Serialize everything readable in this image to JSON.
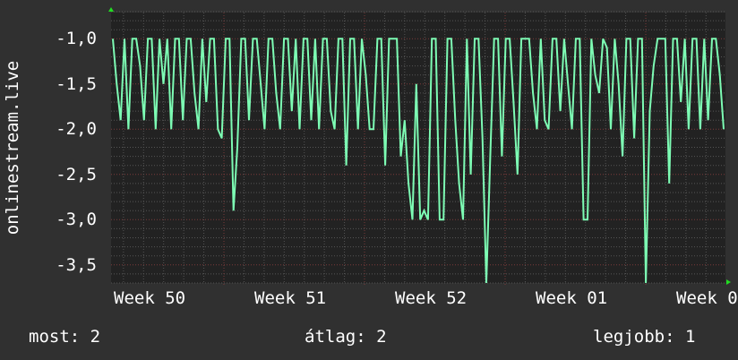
{
  "chart_data": {
    "type": "line",
    "ylabel": "onlinestream.live",
    "xlabel": "",
    "ylim": [
      -3.7,
      -0.71
    ],
    "yticks": [
      "-1,0",
      "-1,5",
      "-2,0",
      "-2,5",
      "-3,0",
      "-3,5"
    ],
    "ytick_values": [
      -1.0,
      -1.5,
      -2.0,
      -2.5,
      -3.0,
      -3.5
    ],
    "xticks": [
      "Week 50",
      "Week 51",
      "Week 52",
      "Week 01",
      "Week 0"
    ],
    "grid": true,
    "colors": {
      "line": "#7dfcb4",
      "background": "#303030",
      "plot": "#222222",
      "major_grid": "#7a3a3a",
      "minor_grid": "#555555",
      "arrow": "#22dd22"
    },
    "series": [
      {
        "values": [
          -1,
          -1.5,
          -1.9,
          -1,
          -2,
          -1,
          -1,
          -1.3,
          -1.9,
          -1,
          -1,
          -2,
          -1,
          -1.5,
          -1,
          -2,
          -1,
          -1,
          -1.9,
          -1,
          -1,
          -1.6,
          -2,
          -1,
          -1.7,
          -1,
          -1,
          -2,
          -2.1,
          -1,
          -1,
          -2.9,
          -2.2,
          -1,
          -1,
          -1.9,
          -1,
          -1,
          -1.5,
          -2,
          -1,
          -1,
          -1.6,
          -2,
          -1,
          -1,
          -1.8,
          -1,
          -2,
          -1,
          -1,
          -1.9,
          -1,
          -2,
          -1,
          -1,
          -1.8,
          -2,
          -1,
          -1,
          -2.4,
          -1,
          -1,
          -2,
          -1,
          -1.4,
          -2,
          -2,
          -1,
          -1,
          -2.4,
          -1,
          -1,
          -1,
          -2.3,
          -1.9,
          -2.6,
          -3,
          -1.5,
          -3,
          -2.9,
          -3,
          -1,
          -1,
          -3,
          -3,
          -1,
          -1,
          -1.9,
          -2.6,
          -3,
          -1,
          -2.5,
          -1,
          -1,
          -2.1,
          -3.7,
          -2.3,
          -1,
          -1,
          -2.3,
          -1,
          -1,
          -1.7,
          -2.5,
          -1,
          -1,
          -1,
          -1.6,
          -2,
          -1,
          -1.9,
          -2,
          -1,
          -1,
          -1.8,
          -1,
          -1.5,
          -2,
          -1,
          -1,
          -3,
          -3,
          -1,
          -1.4,
          -1.6,
          -1,
          -1.1,
          -2,
          -1,
          -1.5,
          -2.3,
          -1,
          -1,
          -2.1,
          -1,
          -1,
          -3.7,
          -1.8,
          -1.3,
          -1,
          -1,
          -1,
          -2.6,
          -1,
          -1,
          -1.7,
          -1,
          -2,
          -1,
          -1,
          -2,
          -1,
          -1.9,
          -1,
          -1,
          -1.4,
          -2
        ]
      }
    ]
  },
  "legend": {
    "current": "most: 2",
    "average": "átlag: 2",
    "max": "legjobb: 1"
  }
}
